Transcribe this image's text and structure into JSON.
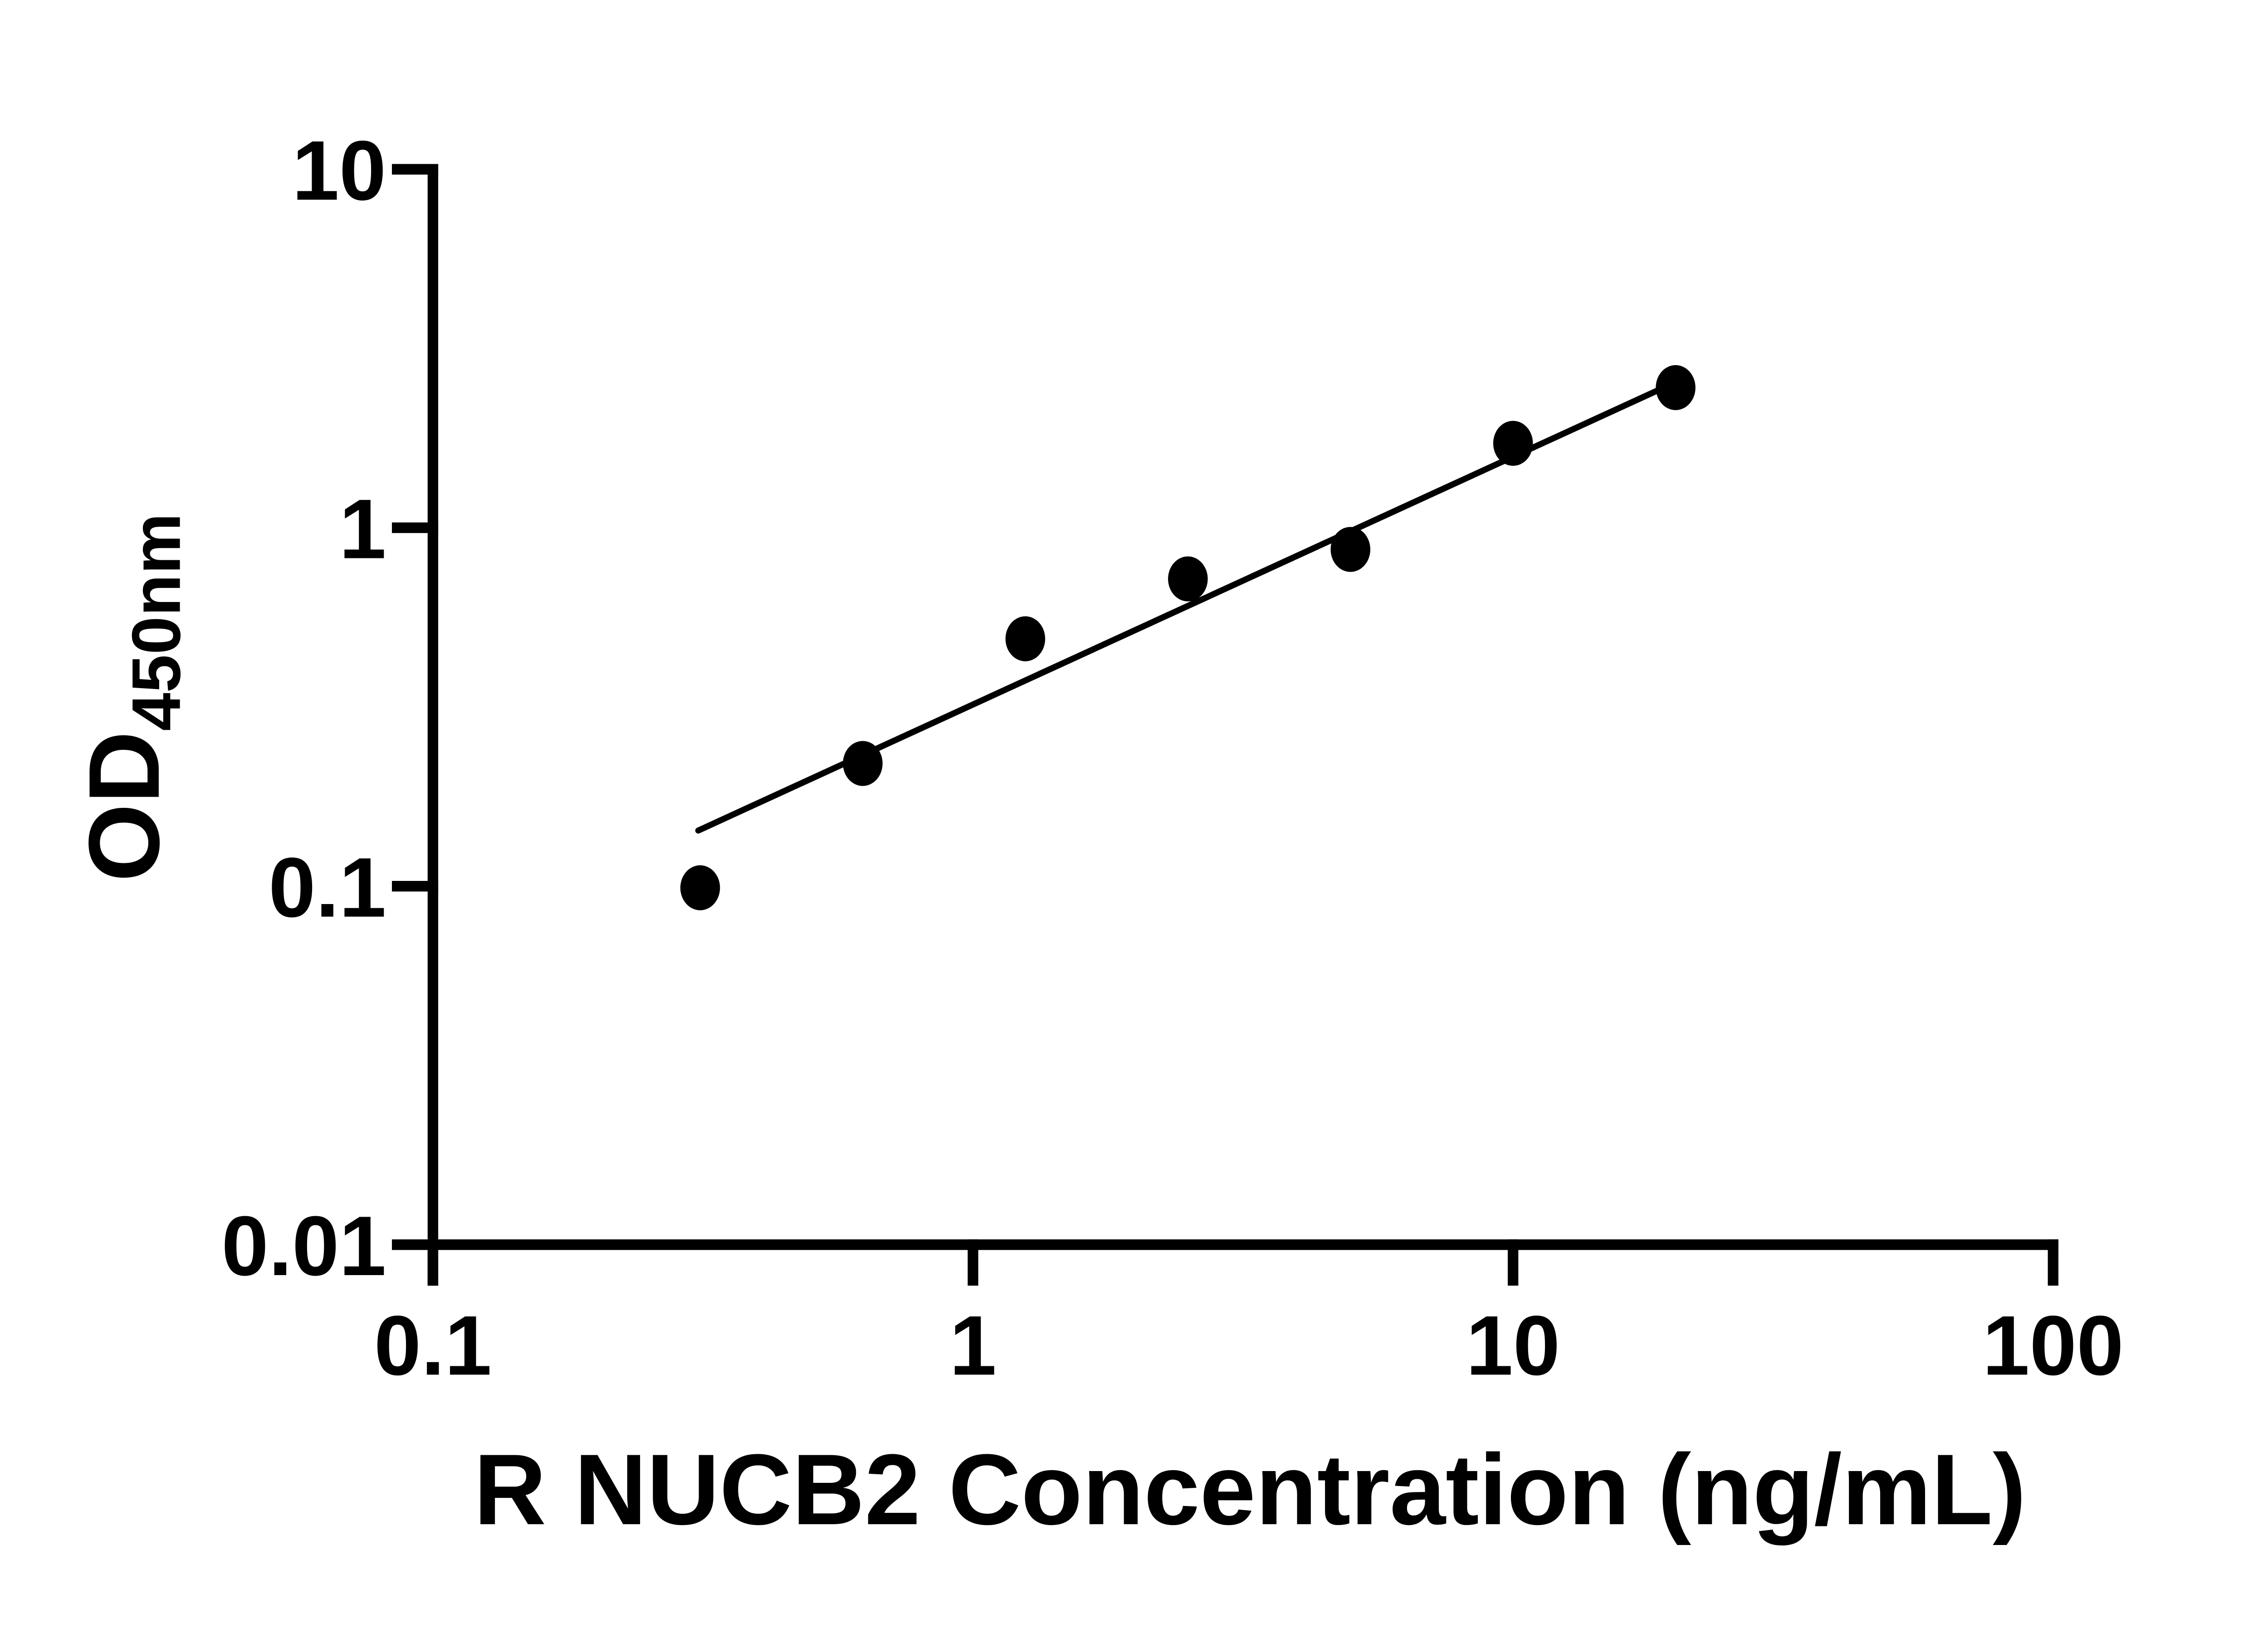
{
  "figure": {
    "background_color": "#ffffff",
    "ink_color": "#000000"
  },
  "chart_data": {
    "type": "scatter",
    "title": "",
    "xlabel": "R NUCB2 Concentration (ng/mL)",
    "ylabel_main": "OD",
    "ylabel_sub": "450nm",
    "x_scale": "log10",
    "y_scale": "log10",
    "xlim": [
      0.1,
      100
    ],
    "ylim": [
      0.01,
      10
    ],
    "grid": "off",
    "legend": "none",
    "x_ticks": [
      {
        "value": 0.1,
        "label": "0.1"
      },
      {
        "value": 1,
        "label": "1"
      },
      {
        "value": 10,
        "label": "10"
      },
      {
        "value": 100,
        "label": "100"
      }
    ],
    "y_ticks": [
      {
        "value": 10,
        "label": "10"
      },
      {
        "value": 1,
        "label": "1"
      },
      {
        "value": 0.1,
        "label": "0.1"
      },
      {
        "value": 0.01,
        "label": "0.01"
      }
    ],
    "series": [
      {
        "name": "standard-points",
        "marker": "filled-circle",
        "color": "#000000",
        "points": [
          {
            "x": 0.3125,
            "y": 0.099
          },
          {
            "x": 0.625,
            "y": 0.22
          },
          {
            "x": 1.25,
            "y": 0.49
          },
          {
            "x": 2.5,
            "y": 0.72
          },
          {
            "x": 5,
            "y": 0.87
          },
          {
            "x": 10,
            "y": 1.72
          },
          {
            "x": 20,
            "y": 2.46
          }
        ]
      }
    ],
    "trend_line": {
      "space": "log-log-straight",
      "x_start": 0.31,
      "y_start": 0.143,
      "x_end": 20.6,
      "y_end": 2.6
    }
  }
}
